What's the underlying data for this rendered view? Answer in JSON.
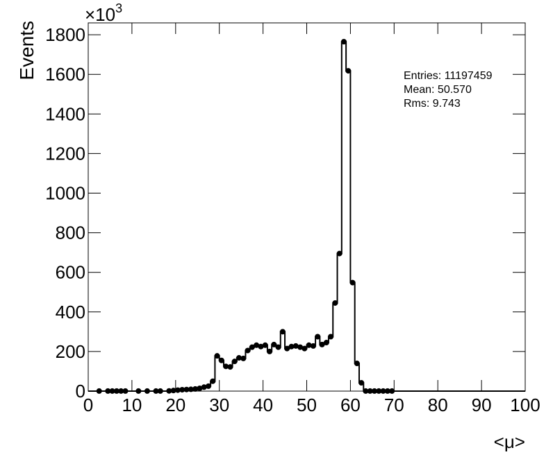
{
  "chart_data": {
    "type": "histogram",
    "ylabel": "Events",
    "xlabel": "<μ>",
    "multiplier": {
      "base": "×10",
      "exponent": "3"
    },
    "bins": [
      0,
      1,
      2,
      3,
      4,
      5,
      6,
      7,
      8,
      9,
      10,
      11,
      12,
      13,
      14,
      15,
      16,
      17,
      18,
      19,
      20,
      21,
      22,
      23,
      24,
      25,
      26,
      27,
      28,
      29,
      30,
      31,
      32,
      33,
      34,
      35,
      36,
      37,
      38,
      39,
      40,
      41,
      42,
      43,
      44,
      45,
      46,
      47,
      48,
      49,
      50,
      51,
      52,
      53,
      54,
      55,
      56,
      57,
      58,
      59,
      60,
      61,
      62,
      63,
      64,
      65,
      66,
      67,
      68,
      69,
      70,
      71,
      72,
      73,
      74,
      75,
      76,
      77,
      78,
      79,
      80,
      81,
      82,
      83,
      84,
      85,
      86,
      87,
      88,
      89,
      90,
      91,
      92,
      93,
      94,
      95,
      96,
      97,
      98,
      99,
      100
    ],
    "counts": [
      0,
      0,
      0.3,
      0,
      0.3,
      0.3,
      0.3,
      0.3,
      0.3,
      0,
      0,
      0.3,
      0,
      0.3,
      0,
      0.3,
      0.3,
      0,
      1,
      3,
      5,
      7,
      8,
      9,
      11,
      14,
      20,
      25,
      50,
      178,
      155,
      125,
      122,
      150,
      168,
      165,
      205,
      222,
      232,
      225,
      232,
      200,
      235,
      222,
      300,
      215,
      225,
      228,
      222,
      215,
      232,
      228,
      275,
      235,
      245,
      275,
      445,
      695,
      1765,
      1618,
      548,
      140,
      42,
      0.3,
      0.3,
      0.3,
      0.3,
      0.3,
      0.3,
      0.3,
      0,
      0,
      0,
      0,
      0,
      0,
      0,
      0,
      0,
      0,
      0,
      0,
      0,
      0,
      0,
      0,
      0,
      0,
      0,
      0,
      0,
      0,
      0,
      0,
      0,
      0,
      0,
      0,
      0,
      0
    ],
    "color": "#000000",
    "xlim": [
      0,
      100
    ],
    "xticks": [
      0,
      10,
      20,
      30,
      40,
      50,
      60,
      70,
      80,
      90,
      100
    ],
    "ylim": [
      0,
      1860
    ],
    "yticks": [
      0,
      200,
      400,
      600,
      800,
      1000,
      1200,
      1400,
      1600,
      1800
    ],
    "stats": [
      "Entries: 11197459",
      "Mean: 50.570",
      "Rms: 9.743"
    ]
  }
}
